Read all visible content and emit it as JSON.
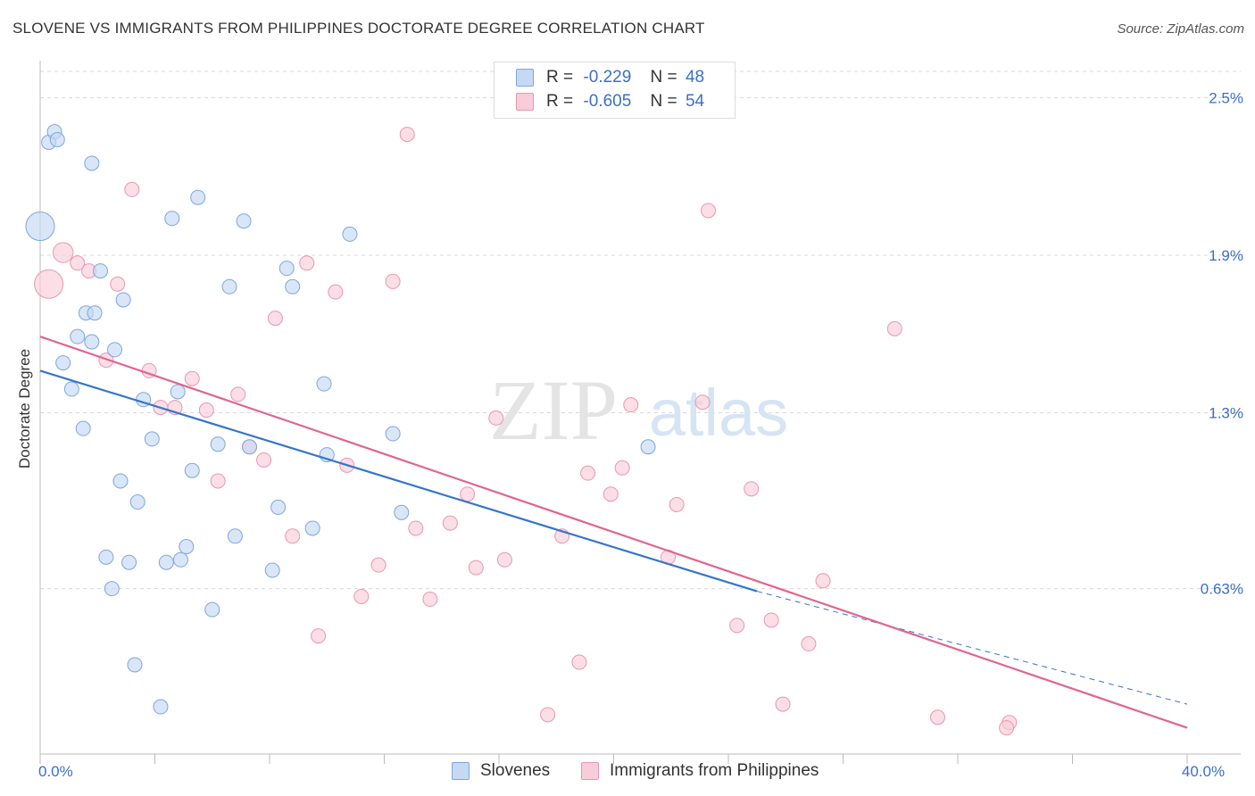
{
  "title": "SLOVENE VS IMMIGRANTS FROM PHILIPPINES DOCTORATE DEGREE CORRELATION CHART",
  "source": "Source: ZipAtlas.com",
  "legend": {
    "r_label": "R =",
    "n_label": "N =",
    "series": [
      {
        "r": "-0.229",
        "n": "48"
      },
      {
        "r": "-0.605",
        "n": "54"
      }
    ]
  },
  "bottom_legend": [
    "Slovenes",
    "Immigrants from Philippines"
  ],
  "watermark": {
    "zip": "ZIP",
    "atlas": "atlas"
  },
  "colors": {
    "blue_fill": "#c5d9f2",
    "blue_stroke": "#7ea6dc",
    "blue_line": "#3674cc",
    "pink_fill": "#f9ccd9",
    "pink_stroke": "#e996b1",
    "pink_line": "#e0648f",
    "tick_text": "#3b6fc9",
    "grid": "#d8d8d8"
  },
  "chart_data": {
    "type": "scatter",
    "title": "SLOVENE VS IMMIGRANTS FROM PHILIPPINES DOCTORATE DEGREE CORRELATION CHART",
    "xlabel": "",
    "ylabel": "Doctorate Degree",
    "xlim": [
      0,
      40
    ],
    "ylim": [
      0,
      2.6
    ],
    "x_ticks": [
      {
        "value": 0,
        "label": "0.0%"
      },
      {
        "value": 40,
        "label": "40.0%"
      }
    ],
    "y_ticks": [
      {
        "value": 0.63,
        "label": "0.63%"
      },
      {
        "value": 1.3,
        "label": "1.3%"
      },
      {
        "value": 1.9,
        "label": "1.9%"
      },
      {
        "value": 2.5,
        "label": "2.5%"
      }
    ],
    "series": [
      {
        "name": "Slovenes",
        "r": -0.229,
        "n": 48,
        "trend": {
          "x0": 0,
          "y0": 1.46,
          "x1": 25,
          "y1": 0.62,
          "dash_to_x": 40,
          "dash_to_y": 0.19
        },
        "points": [
          {
            "x": 0.0,
            "y": 2.01,
            "s": 2
          },
          {
            "x": 0.3,
            "y": 2.33
          },
          {
            "x": 0.5,
            "y": 2.37
          },
          {
            "x": 0.6,
            "y": 2.34
          },
          {
            "x": 1.8,
            "y": 2.25
          },
          {
            "x": 5.5,
            "y": 2.12
          },
          {
            "x": 4.6,
            "y": 2.04
          },
          {
            "x": 7.1,
            "y": 2.03
          },
          {
            "x": 10.8,
            "y": 1.98
          },
          {
            "x": 8.6,
            "y": 1.85
          },
          {
            "x": 2.1,
            "y": 1.84
          },
          {
            "x": 6.6,
            "y": 1.78
          },
          {
            "x": 8.8,
            "y": 1.78
          },
          {
            "x": 2.9,
            "y": 1.73
          },
          {
            "x": 1.6,
            "y": 1.68
          },
          {
            "x": 1.9,
            "y": 1.68
          },
          {
            "x": 1.8,
            "y": 1.57
          },
          {
            "x": 1.3,
            "y": 1.59
          },
          {
            "x": 2.6,
            "y": 1.54
          },
          {
            "x": 0.8,
            "y": 1.49
          },
          {
            "x": 1.1,
            "y": 1.39
          },
          {
            "x": 4.8,
            "y": 1.38
          },
          {
            "x": 3.6,
            "y": 1.35
          },
          {
            "x": 9.9,
            "y": 1.41
          },
          {
            "x": 1.5,
            "y": 1.24
          },
          {
            "x": 3.9,
            "y": 1.2
          },
          {
            "x": 6.2,
            "y": 1.18
          },
          {
            "x": 7.3,
            "y": 1.17
          },
          {
            "x": 12.3,
            "y": 1.22
          },
          {
            "x": 21.2,
            "y": 1.17
          },
          {
            "x": 10.0,
            "y": 1.14
          },
          {
            "x": 5.3,
            "y": 1.08
          },
          {
            "x": 2.8,
            "y": 1.04
          },
          {
            "x": 3.4,
            "y": 0.96
          },
          {
            "x": 8.3,
            "y": 0.94
          },
          {
            "x": 12.6,
            "y": 0.92
          },
          {
            "x": 9.5,
            "y": 0.86
          },
          {
            "x": 6.8,
            "y": 0.83
          },
          {
            "x": 5.1,
            "y": 0.79
          },
          {
            "x": 2.3,
            "y": 0.75
          },
          {
            "x": 3.1,
            "y": 0.73
          },
          {
            "x": 4.4,
            "y": 0.73
          },
          {
            "x": 4.9,
            "y": 0.74
          },
          {
            "x": 8.1,
            "y": 0.7
          },
          {
            "x": 2.5,
            "y": 0.63
          },
          {
            "x": 6.0,
            "y": 0.55
          },
          {
            "x": 3.3,
            "y": 0.34
          },
          {
            "x": 4.2,
            "y": 0.18
          }
        ]
      },
      {
        "name": "Immigrants from Philippines",
        "r": -0.605,
        "n": 54,
        "trend": {
          "x0": 0,
          "y0": 1.59,
          "x1": 40,
          "y1": 0.1
        },
        "points": [
          {
            "x": 0.3,
            "y": 1.79,
            "s": 2
          },
          {
            "x": 0.8,
            "y": 1.91,
            "s": 1.4
          },
          {
            "x": 12.8,
            "y": 2.36
          },
          {
            "x": 3.2,
            "y": 2.15
          },
          {
            "x": 23.3,
            "y": 2.07
          },
          {
            "x": 1.3,
            "y": 1.87
          },
          {
            "x": 9.3,
            "y": 1.87
          },
          {
            "x": 1.7,
            "y": 1.84
          },
          {
            "x": 2.7,
            "y": 1.79
          },
          {
            "x": 12.3,
            "y": 1.8
          },
          {
            "x": 10.3,
            "y": 1.76
          },
          {
            "x": 8.2,
            "y": 1.66
          },
          {
            "x": 29.8,
            "y": 1.62
          },
          {
            "x": 2.3,
            "y": 1.5
          },
          {
            "x": 3.8,
            "y": 1.46
          },
          {
            "x": 5.3,
            "y": 1.43
          },
          {
            "x": 6.9,
            "y": 1.37
          },
          {
            "x": 20.6,
            "y": 1.33
          },
          {
            "x": 23.1,
            "y": 1.34
          },
          {
            "x": 4.2,
            "y": 1.32
          },
          {
            "x": 4.7,
            "y": 1.32
          },
          {
            "x": 5.8,
            "y": 1.31
          },
          {
            "x": 15.9,
            "y": 1.28
          },
          {
            "x": 7.3,
            "y": 1.17
          },
          {
            "x": 7.8,
            "y": 1.12
          },
          {
            "x": 10.7,
            "y": 1.1
          },
          {
            "x": 20.3,
            "y": 1.09
          },
          {
            "x": 19.1,
            "y": 1.07
          },
          {
            "x": 6.2,
            "y": 1.04
          },
          {
            "x": 24.8,
            "y": 1.01
          },
          {
            "x": 14.9,
            "y": 0.99
          },
          {
            "x": 19.9,
            "y": 0.99
          },
          {
            "x": 22.2,
            "y": 0.95
          },
          {
            "x": 14.3,
            "y": 0.88
          },
          {
            "x": 13.1,
            "y": 0.86
          },
          {
            "x": 8.8,
            "y": 0.83
          },
          {
            "x": 18.2,
            "y": 0.83
          },
          {
            "x": 16.2,
            "y": 0.74
          },
          {
            "x": 21.9,
            "y": 0.75
          },
          {
            "x": 11.8,
            "y": 0.72
          },
          {
            "x": 15.2,
            "y": 0.71
          },
          {
            "x": 27.3,
            "y": 0.66
          },
          {
            "x": 11.2,
            "y": 0.6
          },
          {
            "x": 13.6,
            "y": 0.59
          },
          {
            "x": 25.5,
            "y": 0.51
          },
          {
            "x": 24.3,
            "y": 0.49
          },
          {
            "x": 9.7,
            "y": 0.45
          },
          {
            "x": 26.8,
            "y": 0.42
          },
          {
            "x": 18.8,
            "y": 0.35
          },
          {
            "x": 25.9,
            "y": 0.19
          },
          {
            "x": 17.7,
            "y": 0.15
          },
          {
            "x": 31.3,
            "y": 0.14
          },
          {
            "x": 33.8,
            "y": 0.12
          },
          {
            "x": 33.7,
            "y": 0.1
          }
        ]
      }
    ]
  }
}
